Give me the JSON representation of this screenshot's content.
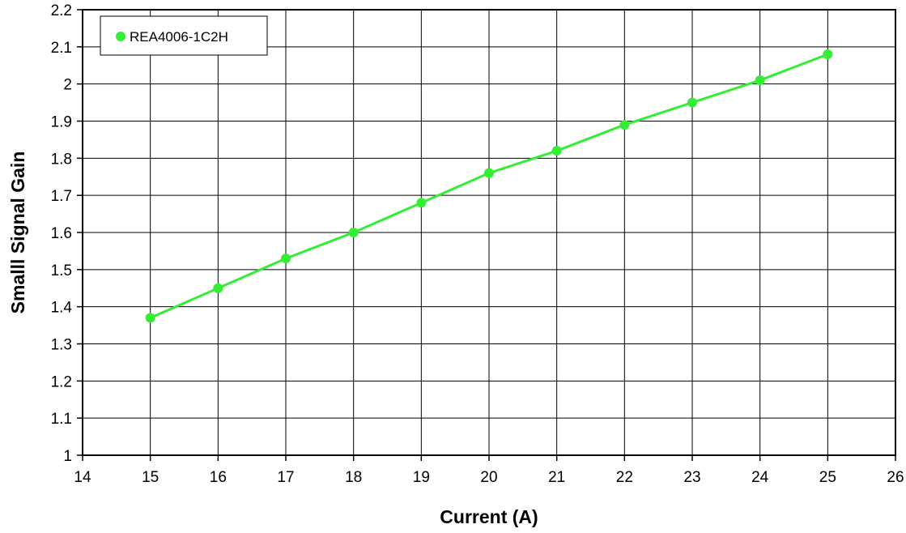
{
  "chart_data": {
    "type": "line",
    "title": "",
    "xlabel": "Current (A)",
    "ylabel": "Smalll Signal Gain",
    "xlim": [
      14,
      26
    ],
    "ylim": [
      1,
      2.2
    ],
    "x_ticks": [
      14,
      15,
      16,
      17,
      18,
      19,
      20,
      21,
      22,
      23,
      24,
      25,
      26
    ],
    "y_ticks": [
      1,
      1.1,
      1.2,
      1.3,
      1.4,
      1.5,
      1.6,
      1.7,
      1.8,
      1.9,
      2,
      2.1,
      2.2
    ],
    "grid": true,
    "legend_position": "top-left",
    "series": [
      {
        "name": "REA4006-1C2H",
        "color": "#33ee33",
        "x": [
          15,
          16,
          17,
          18,
          19,
          20,
          21,
          22,
          23,
          24,
          25
        ],
        "y": [
          1.37,
          1.45,
          1.53,
          1.6,
          1.68,
          1.76,
          1.82,
          1.89,
          1.95,
          2.01,
          2.08
        ]
      }
    ]
  }
}
